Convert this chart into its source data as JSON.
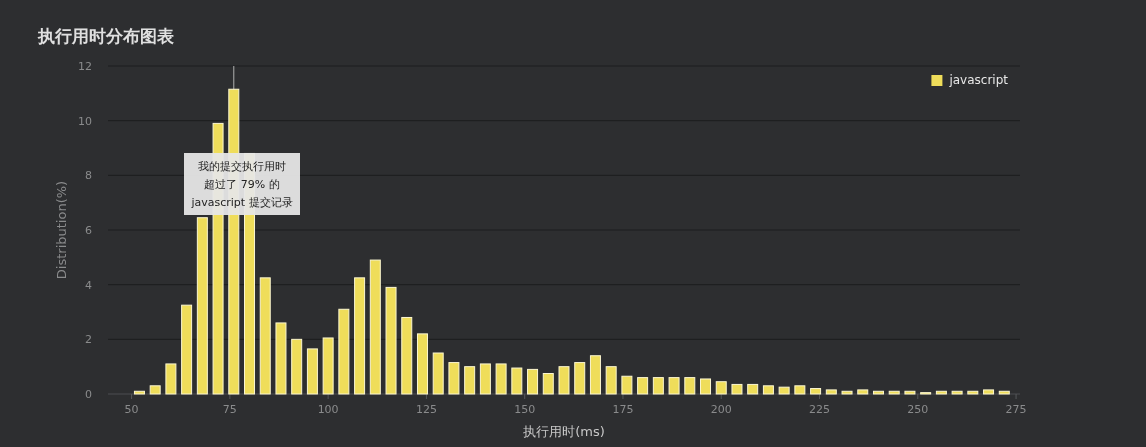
{
  "chart_data": {
    "type": "bar",
    "title": "执行用时分布图表",
    "xlabel": "执行用时(ms)",
    "ylabel": "Distribution(%)",
    "x": [
      52,
      56,
      60,
      64,
      68,
      72,
      76,
      80,
      84,
      88,
      92,
      96,
      100,
      104,
      108,
      112,
      116,
      120,
      124,
      128,
      132,
      136,
      140,
      144,
      148,
      152,
      156,
      160,
      164,
      168,
      172,
      176,
      180,
      184,
      188,
      192,
      196,
      200,
      204,
      208,
      212,
      216,
      220,
      224,
      228,
      232,
      236,
      240,
      244,
      248,
      252,
      256,
      260,
      264,
      268,
      272
    ],
    "series": [
      {
        "name": "javascript",
        "color": "#efdd5a",
        "values": [
          0.1,
          0.3,
          1.1,
          3.25,
          6.45,
          9.9,
          11.15,
          8.8,
          4.25,
          2.6,
          2.0,
          1.65,
          2.05,
          3.1,
          4.25,
          4.9,
          3.9,
          2.8,
          2.2,
          1.5,
          1.15,
          1.0,
          1.1,
          1.1,
          0.95,
          0.9,
          0.75,
          1.0,
          1.15,
          1.4,
          1.0,
          0.65,
          0.6,
          0.6,
          0.6,
          0.6,
          0.55,
          0.45,
          0.35,
          0.35,
          0.3,
          0.25,
          0.3,
          0.2,
          0.15,
          0.1,
          0.15,
          0.1,
          0.1,
          0.1,
          0.05,
          0.1,
          0.1,
          0.1,
          0.15,
          0.1
        ]
      }
    ],
    "xlim": [
      44,
      276
    ],
    "xticks": [
      50,
      75,
      100,
      125,
      150,
      175,
      200,
      225,
      250,
      275
    ],
    "ylim": [
      0,
      12
    ],
    "yticks": [
      0,
      2,
      4,
      6,
      8,
      10,
      12
    ],
    "grid": "y",
    "legend": "top right",
    "ref_lines": [
      {
        "axis": "x",
        "value": 76,
        "color": "#b0b0b0"
      }
    ],
    "annotations": [
      "我的提交执行用时",
      "超过了 79% 的",
      "javascript 提交记录"
    ]
  }
}
